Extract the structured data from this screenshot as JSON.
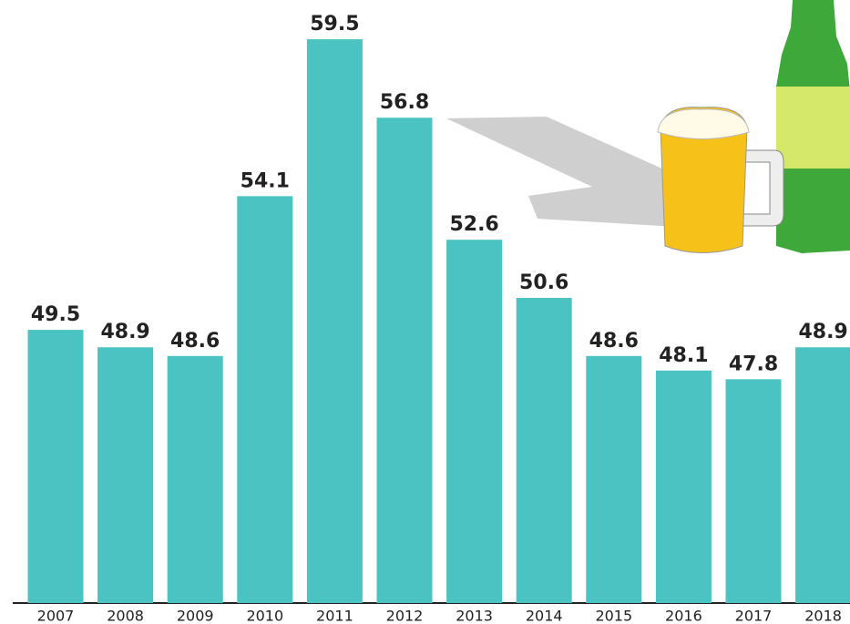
{
  "chart_data": {
    "type": "bar",
    "categories": [
      "2007",
      "2008",
      "2009",
      "2010",
      "2011",
      "2012",
      "2013",
      "2014",
      "2015",
      "2016",
      "2017",
      "2018"
    ],
    "values": [
      49.5,
      48.9,
      48.6,
      54.1,
      59.5,
      56.8,
      52.6,
      50.6,
      48.6,
      48.1,
      47.8,
      48.9
    ],
    "color": "#4cc3c3",
    "ylim": [
      40.1,
      60.85
    ]
  }
}
